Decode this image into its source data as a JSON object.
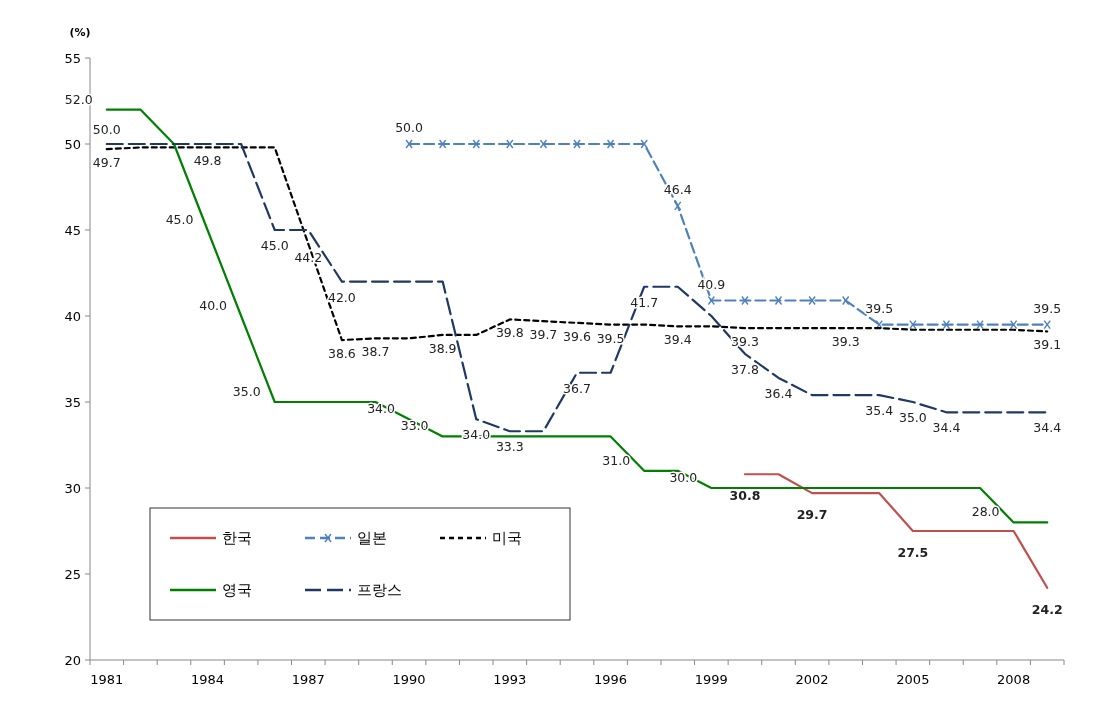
{
  "chart_data": {
    "type": "line",
    "ylabel": "(%)",
    "categories": [
      "1981",
      null,
      null,
      "1984",
      null,
      null,
      "1987",
      null,
      null,
      "1990",
      null,
      null,
      "1993",
      null,
      null,
      "1996",
      null,
      null,
      "1999",
      null,
      null,
      "2002",
      null,
      null,
      "2005",
      null,
      null,
      "2008",
      null
    ],
    "ylim": [
      20,
      55
    ],
    "yticks": [
      20,
      25,
      30,
      35,
      40,
      45,
      50,
      55
    ],
    "grid": false,
    "legend": "bottom left",
    "marker": "none",
    "series": [
      {
        "name": "한국",
        "color": "#c0504d",
        "line_style": "solid",
        "values": [
          null,
          null,
          null,
          null,
          null,
          null,
          null,
          null,
          null,
          null,
          null,
          null,
          null,
          null,
          null,
          null,
          null,
          null,
          null,
          30.8,
          30.8,
          29.7,
          29.7,
          29.7,
          27.5,
          27.5,
          27.5,
          27.5,
          24.2
        ],
        "value_labels": [
          null,
          null,
          null,
          null,
          null,
          null,
          null,
          null,
          null,
          null,
          null,
          null,
          null,
          null,
          null,
          null,
          null,
          null,
          null,
          "30.8",
          null,
          "29.7",
          null,
          null,
          "27.5",
          null,
          null,
          null,
          "24.2"
        ]
      },
      {
        "name": "일본",
        "color": "#4f81bd",
        "line_style": "dashed",
        "marker": "cross",
        "values": [
          null,
          null,
          null,
          null,
          null,
          null,
          null,
          null,
          null,
          50.0,
          50.0,
          50.0,
          50.0,
          50.0,
          50.0,
          50.0,
          50.0,
          46.4,
          40.9,
          40.9,
          40.9,
          40.9,
          40.9,
          39.5,
          39.5,
          39.5,
          39.5,
          39.5,
          39.5
        ],
        "value_labels": [
          null,
          null,
          null,
          null,
          null,
          null,
          null,
          null,
          null,
          "50.0",
          null,
          null,
          null,
          null,
          null,
          null,
          null,
          "46.4",
          "40.9",
          null,
          null,
          null,
          null,
          "39.5",
          null,
          null,
          null,
          null,
          "39.5"
        ]
      },
      {
        "name": "미국",
        "color": "#000000",
        "line_style": "dashed",
        "values": [
          49.7,
          49.8,
          49.8,
          49.8,
          49.8,
          49.8,
          44.2,
          38.6,
          38.7,
          38.7,
          38.9,
          38.9,
          39.8,
          39.7,
          39.6,
          39.5,
          39.5,
          39.4,
          39.4,
          39.3,
          39.3,
          39.3,
          39.3,
          39.3,
          39.2,
          39.2,
          39.2,
          39.2,
          39.1
        ],
        "value_labels": [
          "49.7",
          null,
          null,
          "49.8",
          null,
          null,
          "44.2",
          "38.6",
          "38.7",
          null,
          "38.9",
          null,
          "39.8",
          "39.7",
          "39.6",
          "39.5",
          null,
          "39.4",
          null,
          "39.3",
          null,
          null,
          "39.3",
          null,
          null,
          null,
          null,
          null,
          "39.1"
        ]
      },
      {
        "name": "영국",
        "color": "#008000",
        "line_style": "solid",
        "values": [
          52.0,
          52.0,
          50.0,
          45.0,
          40.0,
          35.0,
          35.0,
          35.0,
          35.0,
          34.0,
          33.0,
          33.0,
          33.0,
          33.0,
          33.0,
          33.0,
          31.0,
          31.0,
          30.0,
          30.0,
          30.0,
          30.0,
          30.0,
          30.0,
          30.0,
          30.0,
          30.0,
          28.0,
          28.0
        ],
        "value_labels": [
          "52.0",
          null,
          null,
          "45.0",
          "40.0",
          "35.0",
          null,
          null,
          null,
          "34.0",
          "33.0",
          null,
          null,
          null,
          null,
          null,
          "31.0",
          null,
          "30.0",
          null,
          null,
          null,
          null,
          null,
          null,
          null,
          null,
          "28.0",
          null
        ]
      },
      {
        "name": "프랑스",
        "color": "#1f3864",
        "line_style": "dashed",
        "values": [
          50.0,
          50.0,
          50.0,
          50.0,
          50.0,
          45.0,
          45.0,
          42.0,
          42.0,
          42.0,
          42.0,
          34.0,
          33.3,
          33.3,
          36.7,
          36.7,
          41.7,
          41.7,
          40.0,
          37.8,
          36.4,
          35.4,
          35.4,
          35.4,
          35.0,
          34.4,
          34.4,
          34.4,
          34.4
        ],
        "value_labels": [
          "50.0",
          null,
          null,
          null,
          null,
          "45.0",
          null,
          "42.0",
          null,
          null,
          null,
          "34.0",
          "33.3",
          null,
          "36.7",
          null,
          "41.7",
          null,
          null,
          "37.8",
          "36.4",
          null,
          null,
          "35.4",
          "35.0",
          "34.4",
          null,
          null,
          "34.4"
        ]
      }
    ]
  }
}
